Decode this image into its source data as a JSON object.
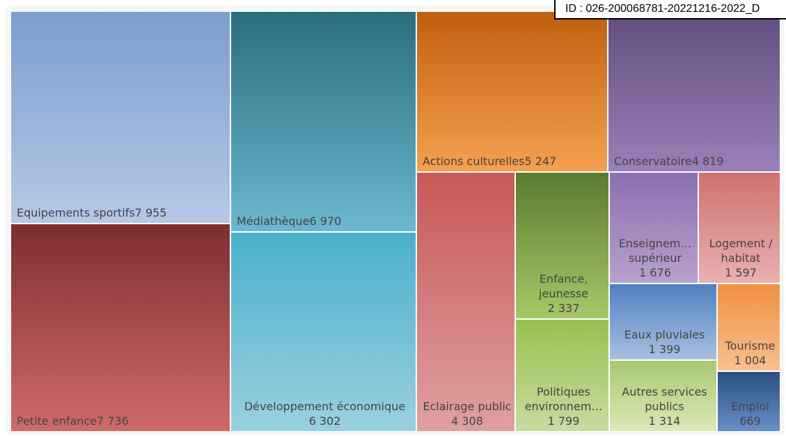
{
  "chart_data": {
    "type": "treemap",
    "annotation": "ID : 026-200068781-20221216-2022_D",
    "categories": [
      "Equipements sportifs",
      "Petite enfance",
      "Médiathèque",
      "Développement économique",
      "Actions culturelles",
      "Conservatoire",
      "Eclairage public",
      "Enfance, jeunesse",
      "Politiques environnem…",
      "Enseignem… supérieur",
      "Logement / habitat",
      "Eaux pluviales",
      "Tourisme",
      "Autres services publics",
      "Emploi"
    ],
    "values": [
      7955,
      7736,
      6970,
      6302,
      5247,
      4819,
      4308,
      2337,
      1799,
      1676,
      1597,
      1399,
      1004,
      1314,
      669
    ],
    "value_labels": [
      "7 955",
      "7 736",
      "6 970",
      "6 302",
      "5 247",
      "4 819",
      "4 308",
      "2 337",
      "1 799",
      "1 676",
      "1 597",
      "1 399",
      "1 004",
      "1 314",
      "669"
    ],
    "colors": [
      "#7a9fcf",
      "#7e2e30",
      "#2a6e7e",
      "#4ab0cc",
      "#c06010",
      "#604e7e",
      "#c85858",
      "#5a7a30",
      "#98c050",
      "#8a70b0",
      "#d07070",
      "#5080c0",
      "#f09040",
      "#a8c870",
      "#2a4e80"
    ],
    "colors_light": [
      "#b6c8e6",
      "#d06a6a",
      "#6ab8d0",
      "#9ad0e0",
      "#f5a050",
      "#9a80b8",
      "#e0a0a0",
      "#a8c868",
      "#c8dca0",
      "#b8a0cc",
      "#eab0b0",
      "#a8c0e0",
      "#f8c090",
      "#dce8b8",
      "#6890c8"
    ]
  }
}
